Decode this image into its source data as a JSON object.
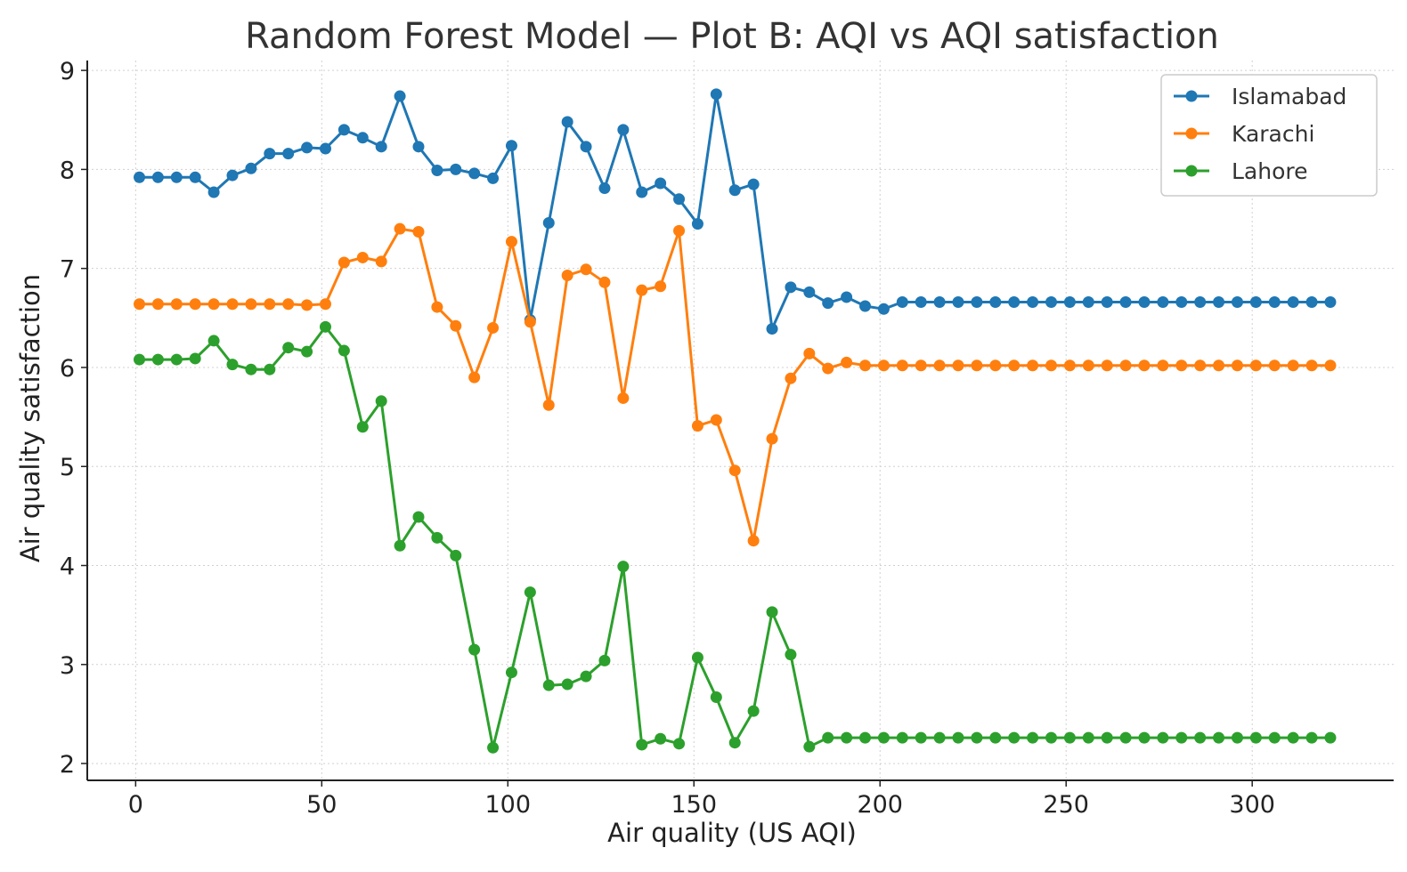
{
  "chart_data": {
    "type": "line",
    "title": "Random Forest Model — Plot B: AQI vs AQI satisfaction",
    "xlabel": "Air quality (US AQI)",
    "ylabel": "Air quality satisfaction",
    "xlim": [
      -13,
      338
    ],
    "ylim": [
      1.83,
      9.1
    ],
    "xticks": [
      0,
      50,
      100,
      150,
      200,
      250,
      300
    ],
    "yticks": [
      2,
      3,
      4,
      5,
      6,
      7,
      8,
      9
    ],
    "grid": true,
    "legend_position": "top-right",
    "x": [
      1,
      6,
      11,
      16,
      21,
      26,
      31,
      36,
      41,
      46,
      51,
      56,
      61,
      66,
      71,
      76,
      81,
      86,
      91,
      96,
      101,
      106,
      111,
      116,
      121,
      126,
      131,
      136,
      141,
      146,
      151,
      156,
      161,
      166,
      171,
      176,
      181,
      186,
      191,
      196,
      201,
      206,
      211,
      216,
      221,
      226,
      231,
      236,
      241,
      246,
      251,
      256,
      261,
      266,
      271,
      276,
      281,
      286,
      291,
      296,
      301,
      306,
      311,
      316,
      321
    ],
    "series": [
      {
        "name": "Islamabad",
        "color": "#1f77b4",
        "values": [
          7.92,
          7.92,
          7.92,
          7.92,
          7.77,
          7.94,
          8.01,
          8.16,
          8.16,
          8.22,
          8.21,
          8.4,
          8.32,
          8.23,
          8.74,
          8.23,
          7.99,
          8.0,
          7.96,
          7.91,
          8.24,
          6.48,
          7.46,
          8.48,
          8.23,
          7.81,
          8.4,
          7.77,
          7.86,
          7.7,
          7.45,
          8.76,
          7.79,
          7.85,
          6.39,
          6.81,
          6.76,
          6.65,
          6.71,
          6.62,
          6.59,
          6.66,
          6.66,
          6.66,
          6.66,
          6.66,
          6.66,
          6.66,
          6.66,
          6.66,
          6.66,
          6.66,
          6.66,
          6.66,
          6.66,
          6.66,
          6.66,
          6.66,
          6.66,
          6.66,
          6.66,
          6.66,
          6.66,
          6.66,
          6.66
        ]
      },
      {
        "name": "Karachi",
        "color": "#ff7f0e",
        "values": [
          6.64,
          6.64,
          6.64,
          6.64,
          6.64,
          6.64,
          6.64,
          6.64,
          6.64,
          6.63,
          6.64,
          7.06,
          7.11,
          7.07,
          7.4,
          7.37,
          6.61,
          6.42,
          5.9,
          6.4,
          7.27,
          6.46,
          5.62,
          6.93,
          6.99,
          6.86,
          5.69,
          6.78,
          6.82,
          7.38,
          5.41,
          5.47,
          4.96,
          4.25,
          5.28,
          5.89,
          6.14,
          5.99,
          6.05,
          6.02,
          6.02,
          6.02,
          6.02,
          6.02,
          6.02,
          6.02,
          6.02,
          6.02,
          6.02,
          6.02,
          6.02,
          6.02,
          6.02,
          6.02,
          6.02,
          6.02,
          6.02,
          6.02,
          6.02,
          6.02,
          6.02,
          6.02,
          6.02,
          6.02,
          6.02
        ]
      },
      {
        "name": "Lahore",
        "color": "#2ca02c",
        "values": [
          6.08,
          6.08,
          6.08,
          6.09,
          6.27,
          6.03,
          5.98,
          5.98,
          6.2,
          6.16,
          6.41,
          6.17,
          5.4,
          5.66,
          4.2,
          4.49,
          4.28,
          4.1,
          3.15,
          2.16,
          2.92,
          3.73,
          2.79,
          2.8,
          2.88,
          3.04,
          3.99,
          2.19,
          2.25,
          2.2,
          3.07,
          2.67,
          2.21,
          2.53,
          3.53,
          3.1,
          2.17,
          2.26,
          2.26,
          2.26,
          2.26,
          2.26,
          2.26,
          2.26,
          2.26,
          2.26,
          2.26,
          2.26,
          2.26,
          2.26,
          2.26,
          2.26,
          2.26,
          2.26,
          2.26,
          2.26,
          2.26,
          2.26,
          2.26,
          2.26,
          2.26,
          2.26,
          2.26,
          2.26,
          2.26
        ]
      }
    ]
  }
}
